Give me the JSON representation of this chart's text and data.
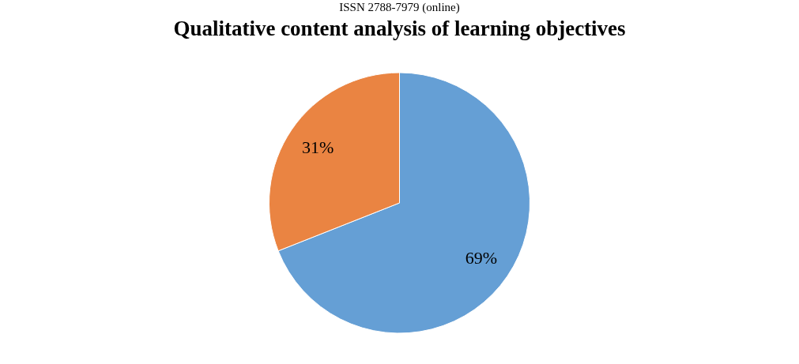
{
  "chart_data": {
    "type": "pie",
    "title": "Qualitative content analysis of learning objectives",
    "annotations": [
      "ISSN 2788-7979 (online)"
    ],
    "categories": [
      null,
      null
    ],
    "values": [
      69,
      31
    ],
    "value_labels": [
      "69%",
      "31%"
    ],
    "colors": [
      "#659fd5",
      "#ea8442"
    ],
    "legend": false
  }
}
